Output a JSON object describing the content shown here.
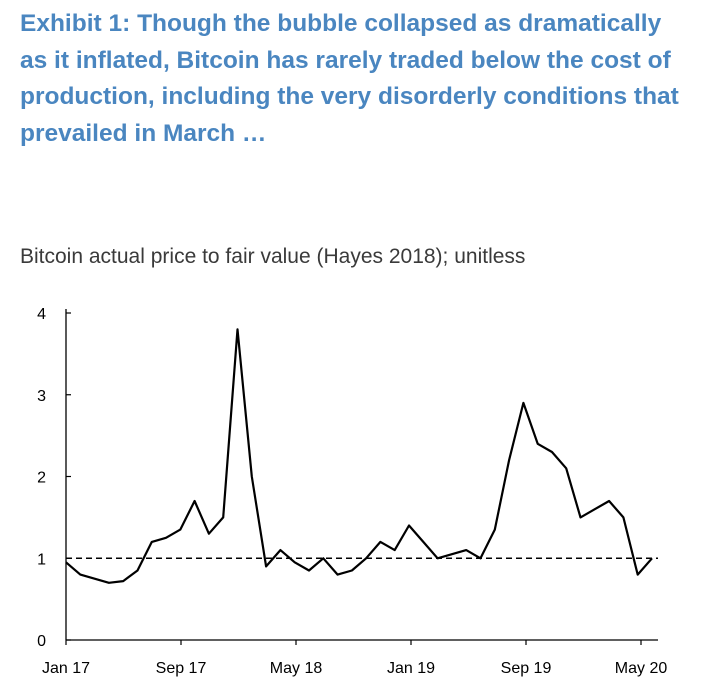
{
  "title": "Exhibit 1: Though the bubble collapsed as dramatically as it inflated, Bitcoin has rarely traded below the cost of production, including the very disorderly conditions that prevailed in March …",
  "subtitle": "Bitcoin actual price to fair value (Hayes 2018); unitless",
  "colors": {
    "title": "#4a86c0",
    "subtitle": "#3a3a3a",
    "line": "#000000"
  },
  "chart_data": {
    "type": "line",
    "title": "",
    "xlabel": "",
    "ylabel": "",
    "x_tick_labels": [
      "Jan 17",
      "Sep 17",
      "May 18",
      "Jan 19",
      "Sep 19",
      "May 20"
    ],
    "y_tick_labels": [
      "0",
      "1",
      "2",
      "3",
      "4"
    ],
    "ylim": [
      0,
      4
    ],
    "xlim": [
      "2017-01",
      "2020-06"
    ],
    "grid": false,
    "reference_line": {
      "y": 1,
      "style": "dashed"
    },
    "series": [
      {
        "x": [
          "2017-01",
          "2017-02",
          "2017-03",
          "2017-04",
          "2017-05",
          "2017-06",
          "2017-07",
          "2017-08",
          "2017-09",
          "2017-10",
          "2017-11",
          "2017-12",
          "2018-01",
          "2018-02",
          "2018-03",
          "2018-04",
          "2018-05",
          "2018-06",
          "2018-07",
          "2018-08",
          "2018-09",
          "2018-10",
          "2018-11",
          "2018-12",
          "2019-01",
          "2019-02",
          "2019-03",
          "2019-04",
          "2019-05",
          "2019-06",
          "2019-07",
          "2019-08",
          "2019-09",
          "2019-10",
          "2019-11",
          "2019-12",
          "2020-01",
          "2020-02",
          "2020-03",
          "2020-04",
          "2020-05",
          "2020-06"
        ],
        "values": [
          0.95,
          0.8,
          0.75,
          0.7,
          0.72,
          0.85,
          1.2,
          1.25,
          1.35,
          1.7,
          1.3,
          1.5,
          3.8,
          2.0,
          0.9,
          1.1,
          0.95,
          0.85,
          1.0,
          0.8,
          0.85,
          1.0,
          1.2,
          1.1,
          1.4,
          1.2,
          1.0,
          1.05,
          1.1,
          1.0,
          1.35,
          2.2,
          2.9,
          2.4,
          2.3,
          2.1,
          1.5,
          1.6,
          1.7,
          1.5,
          0.8,
          1.0
        ]
      }
    ]
  }
}
